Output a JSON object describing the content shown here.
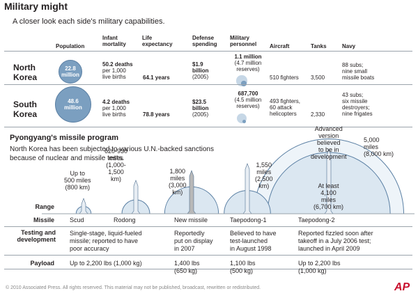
{
  "header": {
    "title": "Military might",
    "subtitle": "A closer look each side's military capabilities."
  },
  "table": {
    "columns": {
      "population": "Population",
      "infant_mortality": "Infant\nmortality",
      "life_expectancy": "Life\nexpectancy",
      "defense_spending": "Defense\nspending",
      "military_personnel": "Military\npersonnel",
      "aircraft": "Aircraft",
      "tanks": "Tanks",
      "navy": "Navy"
    },
    "rows": [
      {
        "country": "North\nKorea",
        "population": "22.8\nmillion",
        "population_value": 22.8,
        "infant_bold": "50.2 deaths",
        "infant_rest": "per 1,000\nlive births",
        "life": "64.1 years",
        "spending_bold": "$1.9\nbillion",
        "spending_year": "(2005)",
        "personnel_bold": "1.1 million",
        "personnel_rest": "(4.7 million\nreserves)",
        "personnel_value": 1.1,
        "reserves_value": 4.7,
        "aircraft": "510 fighters",
        "tanks": "3,500",
        "navy": "88 subs;\nnine small\nmissile boats"
      },
      {
        "country": "South\nKorea",
        "population": "48.6\nmillion",
        "population_value": 48.6,
        "infant_bold": "4.2 deaths",
        "infant_rest": "per 1,000\nlive births",
        "life": "78.8 years",
        "spending_bold": "$23.5\nbillion",
        "spending_year": "(2005)",
        "personnel_bold": "687,700",
        "personnel_rest": "(4.5 million\nreserves)",
        "personnel_value": 0.6877,
        "reserves_value": 4.5,
        "aircraft": "493 fighters,\n60 attack\nhelicopters",
        "tanks": "2,330",
        "navy": "43 subs;\nsix missile\ndestroyers;\nnine frigates"
      }
    ]
  },
  "missile_section": {
    "title": "Pyongyang's missile program",
    "description": "North Korea has been subjected to various U.N.-backed sanctions because of nuclear and missile tests.",
    "row_labels": {
      "range": "Range",
      "missile": "Missile",
      "testing": "Testing and\ndevelopment",
      "payload": "Payload"
    }
  },
  "chart_data": {
    "type": "table",
    "title": "Pyongyang's missile program",
    "missiles": [
      {
        "name": "Scud",
        "range_label": "Up to\n500 miles\n(800 km)",
        "range_miles": 500,
        "testing": "Single-stage, liquid-fueled\nmissile; reported to have\npoor accuracy",
        "payload": "Up to 2,200 lbs (1,000 kg)"
      },
      {
        "name": "Rodong",
        "range_label": "620-930\nmiles\n(1,000-\n1,500\nkm)",
        "range_miles": 930,
        "testing": "",
        "payload": ""
      },
      {
        "name": "New missile",
        "range_label": "1,800\nmiles\n(3,000\nkm)",
        "range_miles": 1800,
        "testing": "Reportedly\nput on display\nin 2007",
        "payload": "1,400 lbs\n(650 kg)"
      },
      {
        "name": "Taepodong-1",
        "range_label": "1,550\nmiles\n(2,500\nkm)",
        "range_miles": 1550,
        "testing": "Believed to have\ntest-launched\nin August 1998",
        "payload": "1,100 lbs\n(500 kg)"
      },
      {
        "name": "Taepodong-2",
        "range_label": "At least\n4,100\nmiles\n(6,700 km)",
        "range_miles": 4100,
        "range_label_extra": "5,000\nmiles\n(8,000 km)",
        "range_miles_extra": 5000,
        "advanced_note": "Advanced\nversion\nbelieved\nto be in\ndevelopment",
        "testing": "Reported fizzled soon after\ntakeoff in a July 2006 test;\nlaunched in April 2009",
        "payload": "Up to 2,200 lbs\n(1,000 kg)"
      }
    ]
  },
  "footer": {
    "copyright": "© 2010 Associated Press. All rights reserved. This material may not be published, broadcast, rewritten or redistributed.",
    "logo": "AP"
  }
}
